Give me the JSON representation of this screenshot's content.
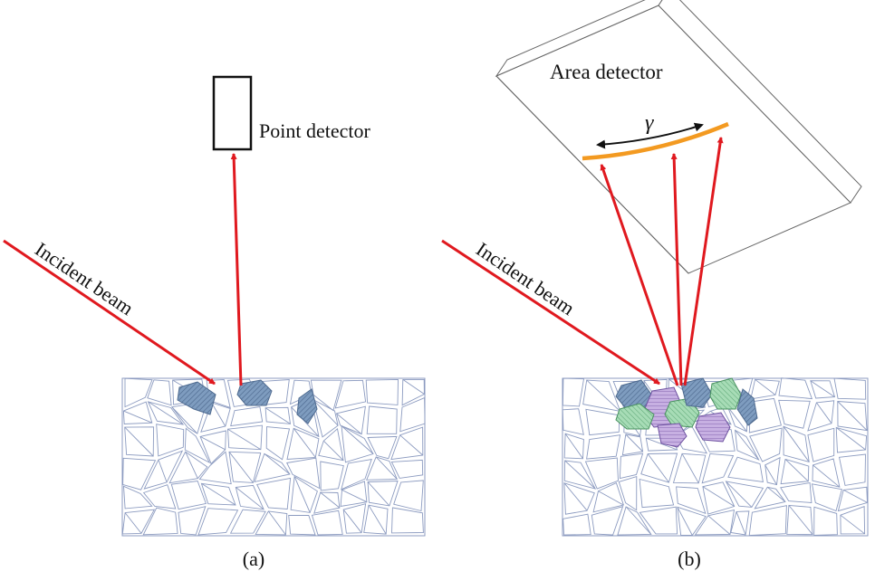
{
  "panel_a": {
    "caption": "(a)",
    "detector_label": "Point detector",
    "beam_label": "Incident beam"
  },
  "panel_b": {
    "caption": "(b)",
    "detector_label": "Area detector",
    "beam_label": "Incident beam",
    "arc_symbol": "γ"
  },
  "colors": {
    "beam": "#e0191f",
    "arc": "#f39a21",
    "grain_lines": "#8c9bc0",
    "grain_blue": "#6f8fb3",
    "grain_green": "#8fd0a5",
    "grain_purple": "#b99ad6",
    "outline": "#111111"
  }
}
